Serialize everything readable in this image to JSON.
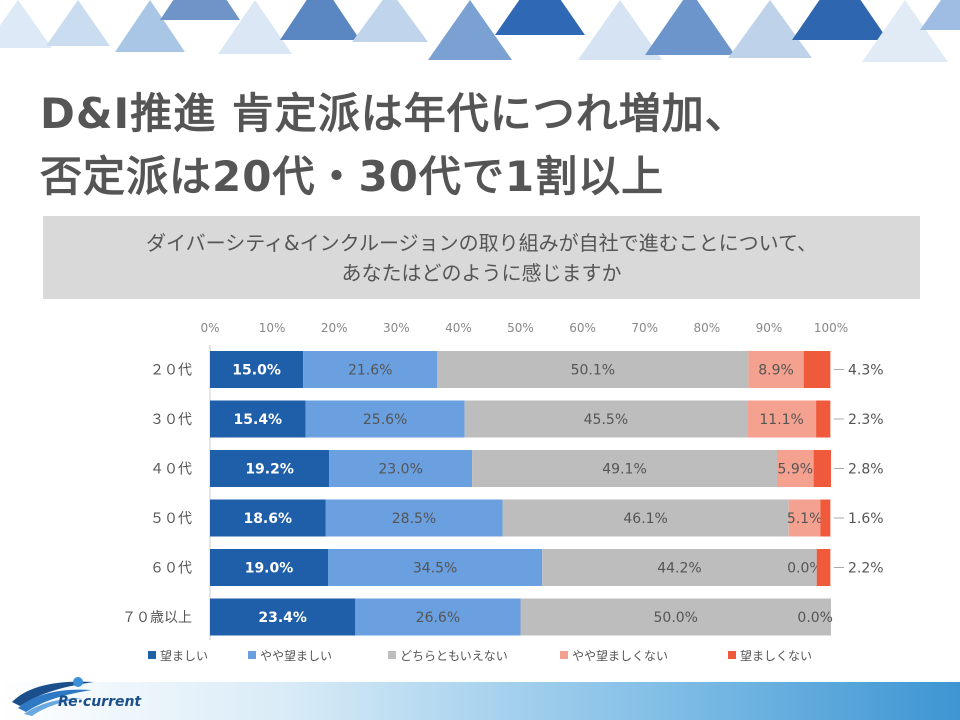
{
  "title": {
    "line1": "D&I推進 肯定派は年代につれ増加、",
    "line2": "否定派は20代・30代で1割以上"
  },
  "question": {
    "line1": "ダイバーシティ&インクルージョンの取り組みが自社で進むことについて、",
    "line2": "あなたはどのように感じますか"
  },
  "logo": {
    "text": "Re·current"
  },
  "colors": {
    "primary_dark": "#1f5ea8",
    "primary_light": "#6a9fe0",
    "neutral": "#bdbdbd",
    "negative_light": "#f4a190",
    "negative_dark": "#ef5a3c",
    "title_text": "#555555",
    "question_bg": "#d9d9d9"
  },
  "chart_data": {
    "type": "bar",
    "orientation": "horizontal",
    "stacked": true,
    "percent_scale": true,
    "xlim": [
      0,
      100
    ],
    "x_ticks": [
      "0%",
      "10%",
      "20%",
      "30%",
      "40%",
      "50%",
      "60%",
      "70%",
      "80%",
      "90%",
      "100%"
    ],
    "x_tick_values": [
      0,
      10,
      20,
      30,
      40,
      50,
      60,
      70,
      80,
      90,
      100
    ],
    "legend_position": "bottom",
    "categories": [
      "２０代",
      "３０代",
      "４０代",
      "５０代",
      "６０代",
      "７０歳以上"
    ],
    "series": [
      {
        "name": "望ましい",
        "color": "#1f5ea8",
        "label_color": "#ffffff",
        "label_bold": true,
        "values": [
          15.0,
          15.4,
          19.2,
          18.6,
          19.0,
          23.4
        ],
        "labels": [
          "15.0%",
          "15.4%",
          "19.2%",
          "18.6%",
          "19.0%",
          "23.4%"
        ]
      },
      {
        "name": "やや望ましい",
        "color": "#6a9fe0",
        "label_color": "#555555",
        "label_bold": false,
        "values": [
          21.6,
          25.6,
          23.0,
          28.5,
          34.5,
          26.6
        ],
        "labels": [
          "21.6%",
          "25.6%",
          "23.0%",
          "28.5%",
          "34.5%",
          "26.6%"
        ]
      },
      {
        "name": "どちらともいえない",
        "color": "#bdbdbd",
        "label_color": "#555555",
        "label_bold": false,
        "values": [
          50.1,
          45.5,
          49.1,
          46.1,
          44.2,
          50.0
        ],
        "labels": [
          "50.1%",
          "45.5%",
          "49.1%",
          "46.1%",
          "44.2%",
          "50.0%"
        ]
      },
      {
        "name": "やや望ましくない",
        "color": "#f4a190",
        "label_color": "#555555",
        "label_bold": false,
        "values": [
          8.9,
          11.1,
          5.9,
          5.1,
          0.0,
          0.0
        ],
        "labels": [
          "8.9%",
          "11.1%",
          "5.9%",
          "5.1%",
          "0.0%",
          "0.0%"
        ]
      },
      {
        "name": "望ましくない",
        "color": "#ef5a3c",
        "label_color": "#555555",
        "label_bold": false,
        "values": [
          4.3,
          2.3,
          2.8,
          1.6,
          2.2,
          0.0
        ],
        "labels": [
          "4.3%",
          "2.3%",
          "2.8%",
          "1.6%",
          "2.2%",
          ""
        ]
      }
    ]
  }
}
